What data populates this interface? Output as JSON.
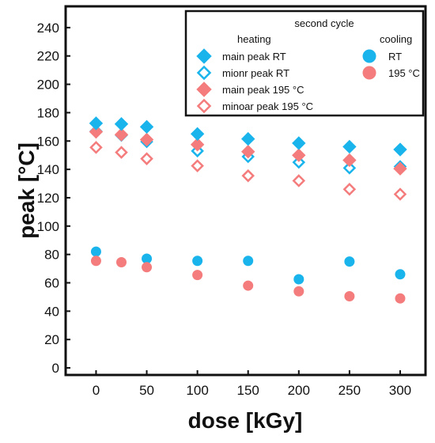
{
  "chart_data": {
    "type": "scatter",
    "title": "",
    "xlabel": "dose [kGy]",
    "ylabel": "peak [°C]",
    "xlim": [
      -30,
      325
    ],
    "ylim": [
      -5,
      255
    ],
    "xticks": [
      "0",
      "50",
      "100",
      "150",
      "200",
      "250",
      "300"
    ],
    "yticks": [
      "0",
      "20",
      "40",
      "60",
      "80",
      "100",
      "120",
      "140",
      "160",
      "180",
      "200",
      "220",
      "240"
    ],
    "grid": false,
    "legend": {
      "placement": "top-right",
      "title": "second cycle",
      "heating_header": "heating",
      "cooling_header": "cooling"
    },
    "x": [
      0,
      25,
      50,
      100,
      150,
      200,
      250,
      300
    ],
    "series": [
      {
        "name": "main peak RT",
        "group": "heating",
        "marker": "diamond-filled",
        "color": "#1ab4ec",
        "values": [
          172.5,
          172.0,
          170.0,
          165.0,
          161.5,
          158.5,
          156.0,
          154.0
        ]
      },
      {
        "name": "mionr peak RT",
        "group": "heating",
        "marker": "diamond-open",
        "color": "#1ab4ec",
        "values": [
          167.0,
          164.0,
          159.5,
          153.0,
          149.0,
          145.0,
          141.0,
          142.0
        ]
      },
      {
        "name": "main peak 195 °C",
        "group": "heating",
        "marker": "diamond-filled",
        "color": "#f47c7c",
        "values": [
          166.5,
          164.5,
          161.0,
          157.5,
          152.5,
          150.0,
          146.5,
          140.5
        ]
      },
      {
        "name": "minoar peak 195 °C",
        "group": "heating",
        "marker": "diamond-open",
        "color": "#f47c7c",
        "values": [
          155.5,
          152.0,
          147.5,
          142.5,
          135.5,
          132.0,
          126.0,
          122.5
        ]
      },
      {
        "name": "RT",
        "group": "cooling",
        "marker": "circle-filled",
        "color": "#1ab4ec",
        "values": [
          82.0,
          null,
          77.0,
          75.5,
          75.5,
          62.5,
          75.0,
          66.0
        ]
      },
      {
        "name": "195 °C",
        "group": "cooling",
        "marker": "circle-filled",
        "color": "#f47c7c",
        "values": [
          75.5,
          74.5,
          71.0,
          65.5,
          58.0,
          54.0,
          50.5,
          49.0
        ]
      }
    ]
  }
}
